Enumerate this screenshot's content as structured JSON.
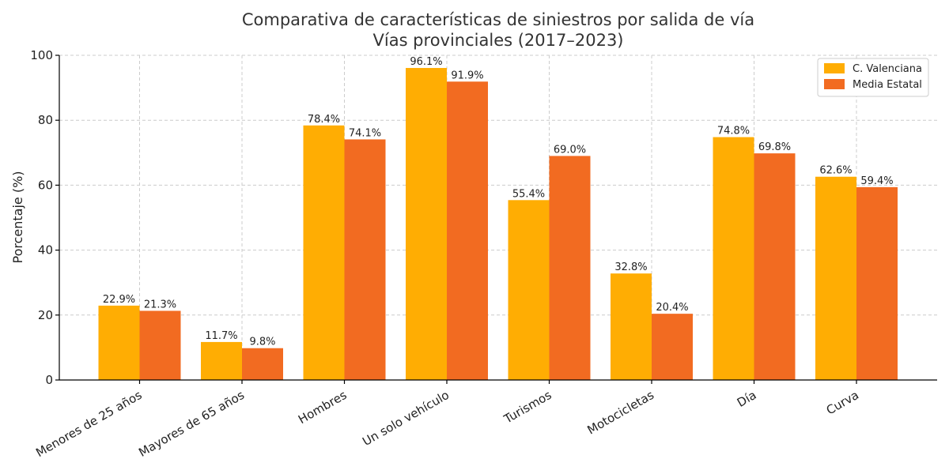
{
  "colors": {
    "c_valenciana": "#FFAD03",
    "media_estatal": "#F26B21"
  },
  "chart_data": {
    "type": "bar",
    "title": [
      "Comparativa de características de siniestros por salida de vía",
      "Vías provinciales (2017–2023)"
    ],
    "ylabel": "Porcentaje (%)",
    "xlabel": "",
    "ylim": [
      0,
      100
    ],
    "yticks": [
      0,
      20,
      40,
      60,
      80,
      100
    ],
    "grid": true,
    "legend_position": "top-right",
    "categories": [
      "Menores de 25 años",
      "Mayores de 65 años",
      "Hombres",
      "Un solo vehículo",
      "Turismos",
      "Motocicletas",
      "Día",
      "Curva"
    ],
    "series": [
      {
        "name": "C. Valenciana",
        "values": [
          22.9,
          11.7,
          78.4,
          96.1,
          55.4,
          32.8,
          74.8,
          62.6
        ],
        "labels": [
          "22.9%",
          "11.7%",
          "78.4%",
          "96.1%",
          "55.4%",
          "32.8%",
          "74.8%",
          "62.6%"
        ]
      },
      {
        "name": "Media Estatal",
        "values": [
          21.3,
          9.8,
          74.1,
          91.9,
          69.0,
          20.4,
          69.8,
          59.4
        ],
        "labels": [
          "21.3%",
          "9.8%",
          "74.1%",
          "91.9%",
          "69.0%",
          "20.4%",
          "69.8%",
          "59.4%"
        ]
      }
    ]
  }
}
